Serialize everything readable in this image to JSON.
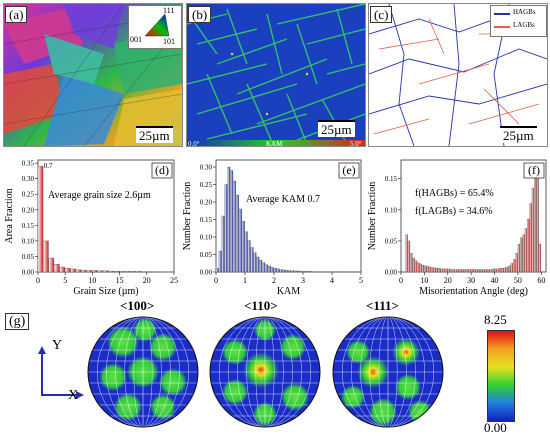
{
  "panels_top": {
    "a": {
      "tag": "(a)",
      "scale": "25µm",
      "ipf": {
        "t": "111",
        "bl": "001",
        "br": "101"
      }
    },
    "b": {
      "tag": "(b)",
      "scale": "25µm",
      "cbar": {
        "min": "0.0°",
        "label": "KAM",
        "max": "5.0°"
      }
    },
    "c": {
      "tag": "(c)",
      "scale": "25µm",
      "legend": [
        {
          "label": "HAGBs",
          "color": "#2233aa"
        },
        {
          "label": "LAGBs",
          "color": "#e0604a"
        }
      ]
    }
  },
  "chart_data": [
    {
      "type": "bar",
      "tag": "(d)",
      "xlabel": "Grain Size (µm)",
      "ylabel": "Area Fraction",
      "annotation": "Average grain size 2.6µm",
      "peak_label": "0.7",
      "xlim": [
        0,
        25
      ],
      "ylim": [
        0,
        0.36
      ],
      "xticks": [
        "0",
        "5",
        "10",
        "15",
        "20",
        "25"
      ],
      "yticks": [
        "0.00",
        "0.05",
        "0.10",
        "0.15",
        "0.20",
        "0.25",
        "0.30",
        "0.35"
      ],
      "bar_width": 1,
      "x": [
        0.5,
        1.5,
        2.5,
        3.5,
        4.5,
        5.5,
        6.5,
        7.5,
        8.5,
        9.5,
        10.5,
        11.5,
        12.5,
        13.5,
        14.5,
        15.5,
        16.5,
        17.5,
        18.5,
        19.5,
        20.5,
        21.5
      ],
      "values": [
        0.34,
        0.1,
        0.045,
        0.025,
        0.016,
        0.012,
        0.01,
        0.007,
        0.006,
        0.005,
        0.005,
        0.004,
        0.004,
        0.003,
        0.003,
        0.002,
        0.002,
        0.002,
        0.002,
        0.001,
        0.001,
        0.001
      ],
      "color": "#cc2222"
    },
    {
      "type": "bar",
      "tag": "(e)",
      "xlabel": "KAM",
      "ylabel": "Number Fraction",
      "annotation": "Average KAM 0.7",
      "xlim": [
        0,
        5
      ],
      "ylim": [
        0,
        0.32
      ],
      "xticks": [
        "0",
        "1",
        "2",
        "3",
        "4",
        "5"
      ],
      "yticks": [
        "0.00",
        "0.05",
        "0.10",
        "0.15",
        "0.20",
        "0.25",
        "0.30"
      ],
      "bar_width": 0.1,
      "x": [
        0.05,
        0.15,
        0.25,
        0.35,
        0.45,
        0.55,
        0.65,
        0.75,
        0.85,
        0.95,
        1.05,
        1.15,
        1.25,
        1.35,
        1.45,
        1.55,
        1.65,
        1.75,
        1.85,
        1.95,
        2.05,
        2.15,
        2.25,
        2.35,
        2.45,
        2.55,
        2.65,
        2.75,
        2.85,
        2.95,
        3.05,
        3.15,
        3.25,
        3.35,
        3.45,
        3.55,
        3.65,
        3.75,
        3.85,
        3.95,
        4.05,
        4.15,
        4.25,
        4.35,
        4.45,
        4.55,
        4.65,
        4.75,
        4.85,
        4.95
      ],
      "values": [
        0.01,
        0.06,
        0.16,
        0.25,
        0.3,
        0.29,
        0.26,
        0.22,
        0.18,
        0.145,
        0.115,
        0.09,
        0.07,
        0.055,
        0.043,
        0.034,
        0.027,
        0.021,
        0.017,
        0.013,
        0.011,
        0.009,
        0.007,
        0.006,
        0.005,
        0.004,
        0.004,
        0.003,
        0.003,
        0.002,
        0.002,
        0.002,
        0.002,
        0.001,
        0.001,
        0.001,
        0.001,
        0.001,
        0.001,
        0.001,
        0.001,
        0.001,
        0.001,
        0.001,
        0.001,
        0.001,
        0.001,
        0.001,
        0.001,
        0.001
      ],
      "color": "#2233aa"
    },
    {
      "type": "bar",
      "tag": "(f)",
      "xlabel": "Misorientation Angle (deg)",
      "ylabel": "Number Fraction",
      "annotations": [
        "f(HAGBs) = 65.4%",
        "f(LAGBs) = 34.6%"
      ],
      "xlim": [
        0,
        62
      ],
      "ylim": [
        0,
        0.18
      ],
      "xticks": [
        "0",
        "10",
        "20",
        "30",
        "40",
        "50",
        "60"
      ],
      "yticks": [
        "0.00",
        "0.05",
        "0.10",
        "0.15"
      ],
      "bar_width": 1,
      "x": [
        2.5,
        3.5,
        4.5,
        5.5,
        6.5,
        7.5,
        8.5,
        9.5,
        10.5,
        11.5,
        12.5,
        13.5,
        14.5,
        15.5,
        16.5,
        17.5,
        18.5,
        19.5,
        20.5,
        21.5,
        22.5,
        23.5,
        24.5,
        25.5,
        26.5,
        27.5,
        28.5,
        29.5,
        30.5,
        31.5,
        32.5,
        33.5,
        34.5,
        35.5,
        36.5,
        37.5,
        38.5,
        39.5,
        40.5,
        41.5,
        42.5,
        43.5,
        44.5,
        45.5,
        46.5,
        47.5,
        48.5,
        49.5,
        50.5,
        51.5,
        52.5,
        53.5,
        54.5,
        55.5,
        56.5,
        57.5,
        58.5,
        59.5
      ],
      "values": [
        0.06,
        0.05,
        0.03,
        0.022,
        0.018,
        0.015,
        0.013,
        0.011,
        0.01,
        0.009,
        0.008,
        0.007,
        0.007,
        0.006,
        0.006,
        0.005,
        0.005,
        0.005,
        0.005,
        0.004,
        0.004,
        0.004,
        0.004,
        0.004,
        0.004,
        0.004,
        0.004,
        0.004,
        0.004,
        0.004,
        0.004,
        0.004,
        0.004,
        0.004,
        0.004,
        0.004,
        0.004,
        0.005,
        0.005,
        0.005,
        0.006,
        0.006,
        0.007,
        0.008,
        0.01,
        0.014,
        0.02,
        0.03,
        0.045,
        0.055,
        0.06,
        0.07,
        0.085,
        0.11,
        0.135,
        0.15,
        0.16,
        0.045
      ],
      "color": "#cc2222"
    }
  ],
  "pole_figures": {
    "tag": "(g)",
    "titles": [
      "<100>",
      "<110>",
      "<111>"
    ],
    "axis_y": "Y",
    "axis_x": "X",
    "colorbar": {
      "max": "8.25",
      "min": "0.00"
    }
  }
}
